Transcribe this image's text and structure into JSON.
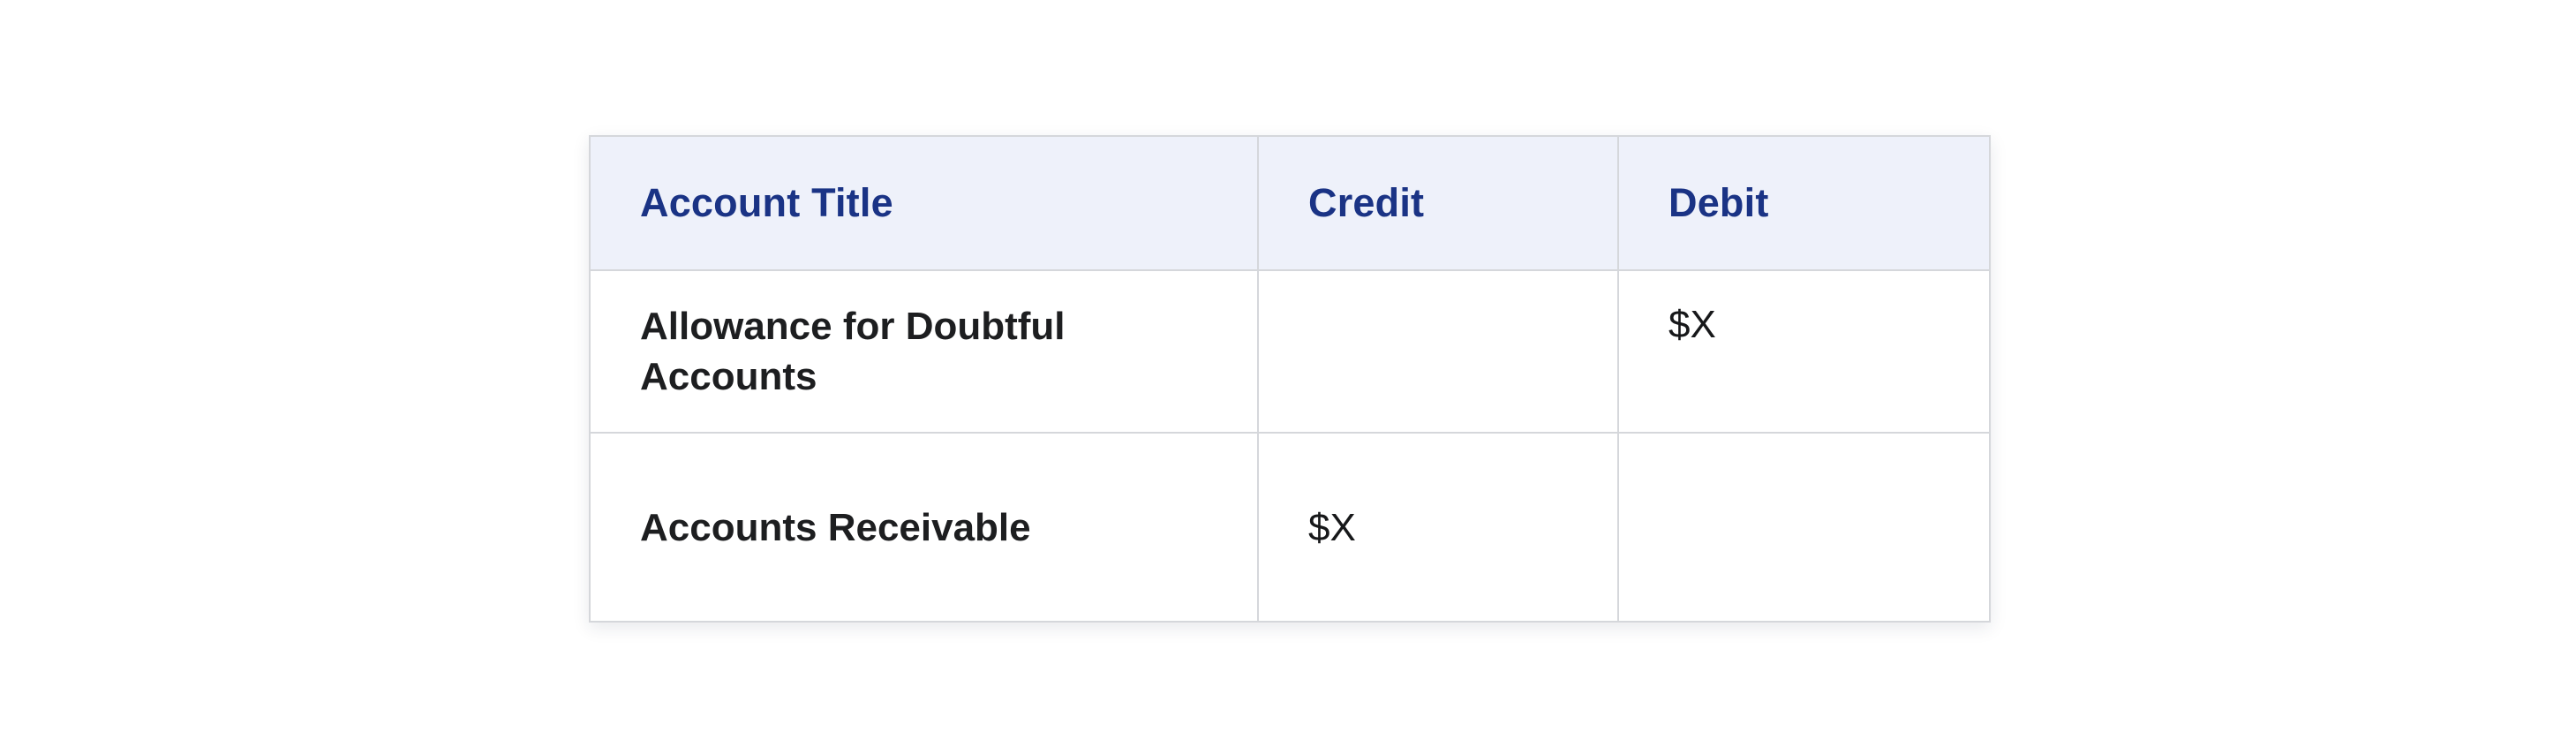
{
  "page": {
    "background": "#ffffff"
  },
  "journal_table": {
    "columns": [
      {
        "id": "account_title",
        "label": "Account Title"
      },
      {
        "id": "credit",
        "label": "Credit"
      },
      {
        "id": "debit",
        "label": "Debit"
      }
    ],
    "rows": [
      {
        "account_title": "Allowance for Doubtful Accounts",
        "credit": "",
        "debit": "$X"
      },
      {
        "account_title": "Accounts Receivable",
        "credit": "$X",
        "debit": ""
      }
    ],
    "colors": {
      "header_background": "#eef1fa",
      "header_text": "#1a3385",
      "body_text": "#1d1e20",
      "amount_text": "#17181a",
      "inner_border": "#d5d7db",
      "outer_border": "#c9ccd1"
    }
  }
}
